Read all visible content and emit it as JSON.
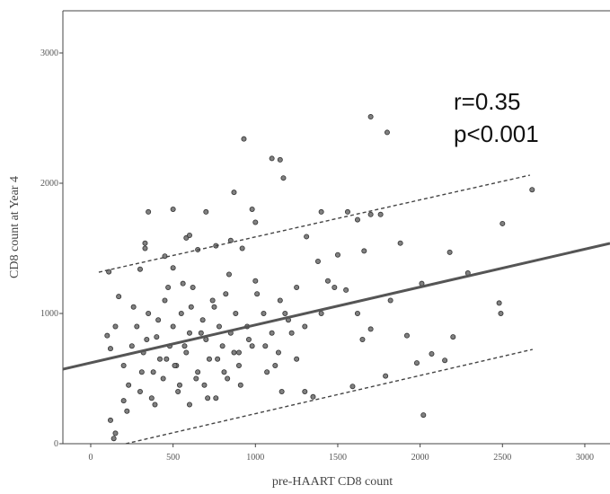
{
  "chart_data": {
    "type": "scatter",
    "xlabel": "pre-HAART CD8 count",
    "ylabel": "CD8 count at Year 4",
    "annotations": [
      "r=0.35",
      "p<0.001"
    ],
    "xlim": [
      -169,
      3153
    ],
    "ylim": [
      0,
      3324
    ],
    "xticks": [
      0,
      500,
      1000,
      1500,
      2000,
      2500,
      3000
    ],
    "yticks": [
      0,
      1000,
      2000,
      3000
    ],
    "color": "#808080",
    "x": [
      1700,
      1800,
      930,
      1100,
      1150,
      1170,
      870,
      980,
      1000,
      1700,
      1760,
      350,
      500,
      700,
      330,
      580,
      600,
      2680,
      2500,
      2290,
      2180,
      2010,
      1880,
      1820,
      2480,
      2490,
      2200,
      2150,
      2070,
      1980,
      2020,
      1920,
      1560,
      1620,
      1400,
      1310,
      1380,
      1500,
      1660,
      1440,
      1550,
      1620,
      1700,
      1790,
      1590,
      1650,
      1250,
      1300,
      1350,
      1160,
      120,
      150,
      140,
      200,
      120,
      100,
      150,
      170,
      110,
      300,
      330,
      450,
      500,
      560,
      650,
      760,
      850,
      920,
      200,
      250,
      280,
      320,
      350,
      380,
      400,
      420,
      450,
      480,
      500,
      520,
      550,
      580,
      600,
      620,
      650,
      680,
      700,
      720,
      750,
      780,
      800,
      820,
      850,
      880,
      900,
      950,
      1000,
      1050,
      1100,
      1150,
      1200,
      1250,
      230,
      260,
      300,
      340,
      370,
      410,
      440,
      470,
      510,
      540,
      570,
      610,
      640,
      670,
      710,
      740,
      770,
      810,
      840,
      870,
      910,
      960,
      1010,
      1060,
      1120,
      1180,
      220,
      310,
      390,
      460,
      530,
      600,
      690,
      760,
      830,
      900,
      980,
      1070,
      1140,
      1220,
      1300,
      1400,
      1480
    ],
    "values": [
      2510,
      2390,
      2340,
      2190,
      2180,
      2040,
      1930,
      1800,
      1700,
      1760,
      1760,
      1780,
      1800,
      1780,
      1540,
      1580,
      1600,
      1950,
      1690,
      1310,
      1470,
      1230,
      1540,
      1100,
      1080,
      1000,
      820,
      640,
      690,
      620,
      220,
      830,
      1780,
      1720,
      1780,
      1590,
      1400,
      1450,
      1480,
      1250,
      1180,
      1000,
      880,
      520,
      440,
      800,
      650,
      400,
      360,
      400,
      180,
      80,
      40,
      330,
      730,
      830,
      900,
      1130,
      1320,
      1340,
      1500,
      1440,
      1350,
      1230,
      1490,
      1520,
      1560,
      1500,
      600,
      750,
      900,
      700,
      1000,
      550,
      820,
      650,
      1100,
      750,
      900,
      600,
      1000,
      700,
      850,
      1200,
      550,
      950,
      800,
      650,
      1050,
      900,
      750,
      1150,
      850,
      1000,
      700,
      900,
      1250,
      1000,
      850,
      1100,
      950,
      1200,
      450,
      1050,
      400,
      800,
      350,
      950,
      500,
      1200,
      600,
      450,
      750,
      1050,
      500,
      850,
      350,
      1100,
      650,
      550,
      1300,
      700,
      450,
      800,
      1150,
      750,
      600,
      1000,
      250,
      550,
      300,
      650,
      400,
      300,
      450,
      350,
      500,
      600,
      750,
      550,
      700,
      850,
      900,
      1000,
      1200
    ],
    "lines": [
      {
        "color": "#555555",
        "dashed": false,
        "x": [
          -169,
          3153
        ],
        "values": [
          572,
          1538
        ]
      },
      {
        "color": "#444444",
        "dashed": true,
        "x": [
          49,
          2667
        ],
        "values": [
          1317,
          2062
        ]
      },
      {
        "color": "#444444",
        "dashed": true,
        "x": [
          213,
          2683
        ],
        "values": [
          0,
          724
        ]
      }
    ]
  }
}
